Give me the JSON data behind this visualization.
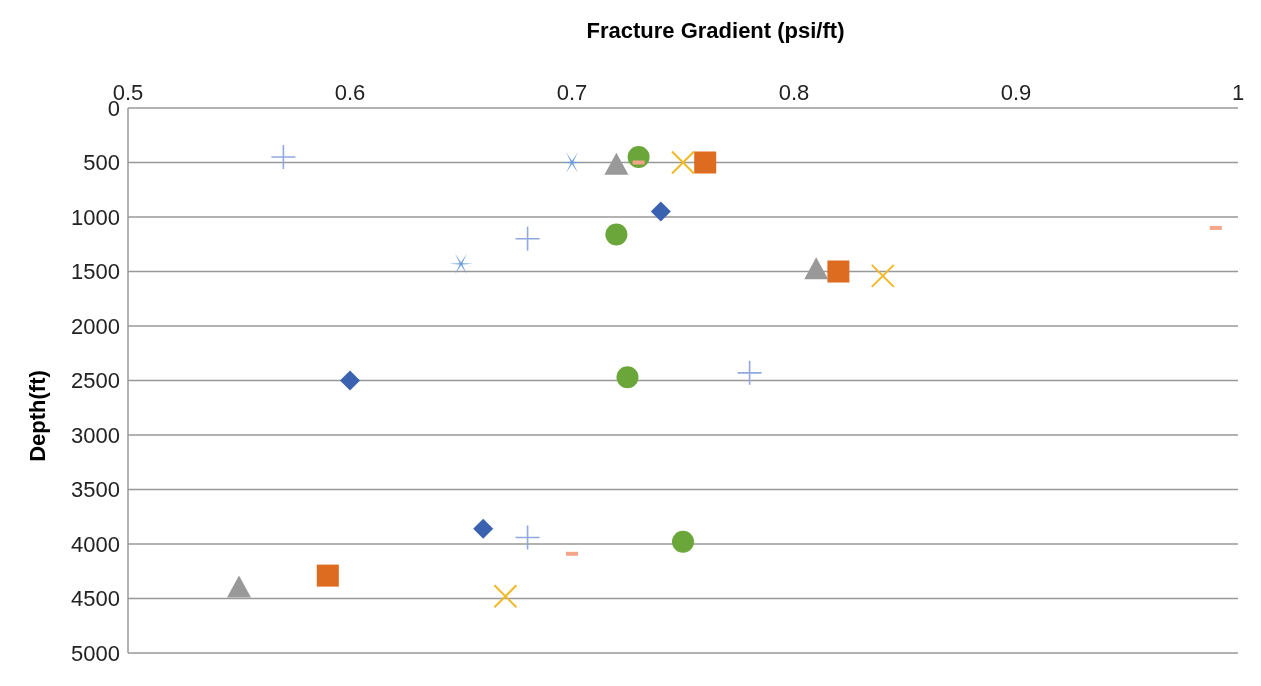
{
  "chart_data": {
    "type": "scatter",
    "xlabel": "Fracture Gradient (psi/ft)",
    "ylabel": "Depth(ft)",
    "xlim": [
      0.5,
      1
    ],
    "xticks": [
      0.5,
      0.6,
      0.7,
      0.8,
      0.9,
      1
    ],
    "ylim": [
      5000,
      0
    ],
    "yticks": [
      0,
      500,
      1000,
      1500,
      2000,
      2500,
      3000,
      3500,
      4000,
      4500,
      5000
    ],
    "grid": "y",
    "legend": false,
    "series": [
      {
        "marker": "diamond",
        "color": "#3a62b0",
        "x": [
          0.74,
          0.6,
          0.66
        ],
        "values": [
          950,
          2500,
          3860
        ]
      },
      {
        "marker": "square",
        "color": "#dd6b20",
        "x": [
          0.76,
          0.82,
          0.59
        ],
        "values": [
          500,
          1500,
          4290
        ]
      },
      {
        "marker": "triangle",
        "color": "#999999",
        "x": [
          0.72,
          0.81,
          0.55
        ],
        "values": [
          520,
          1480,
          4400
        ]
      },
      {
        "marker": "cross",
        "color": "#f2b927",
        "x": [
          0.75,
          0.84,
          0.67
        ],
        "values": [
          500,
          1540,
          4480
        ]
      },
      {
        "marker": "cross",
        "color": "#6a9bd8",
        "x": [
          0.7,
          0.65
        ],
        "values": [
          500,
          1430
        ]
      },
      {
        "marker": "circle",
        "color": "#6aa63a",
        "x": [
          0.73,
          0.72,
          0.725,
          0.75
        ],
        "values": [
          450,
          1160,
          2470,
          3980
        ]
      },
      {
        "marker": "cross",
        "color": "#8fa9e0",
        "x": [
          0.57,
          0.68,
          0.78,
          0.68
        ],
        "values": [
          450,
          1200,
          2430,
          3940
        ]
      },
      {
        "color": "#f4a58a",
        "x": [
          0.73,
          0.99,
          0.7
        ],
        "values": [
          500,
          1100,
          4090
        ]
      }
    ]
  }
}
